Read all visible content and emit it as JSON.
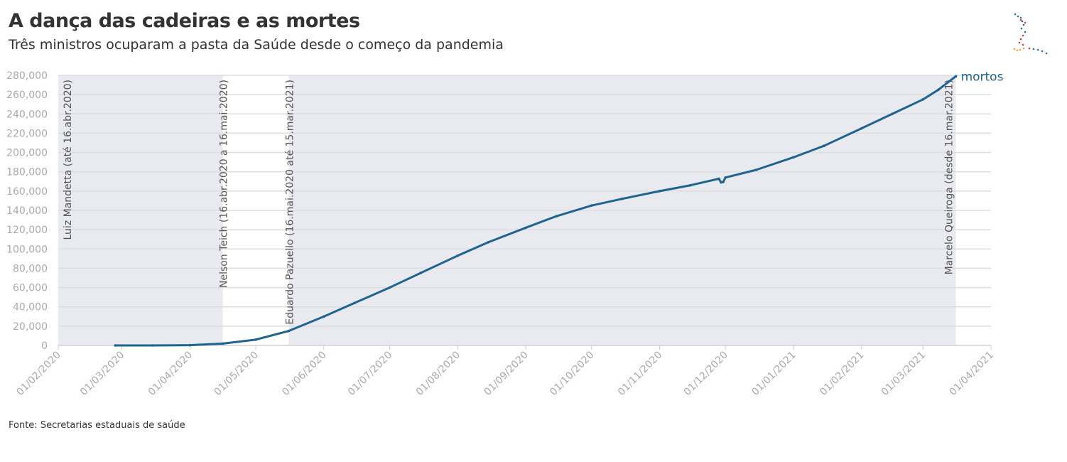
{
  "header": {
    "title": "A dança das cadeiras e as mortes",
    "subtitle": "Três ministros ocuparam a pasta da Saúde desde o começo da pandemia"
  },
  "footer": {
    "source": "Fonte: Secretarias estaduais de saúde"
  },
  "colors": {
    "line": "#1f6391",
    "band": "#e9eaef",
    "grid": "#dcdde2",
    "axis_text": "#aaaaaa"
  },
  "chart_data": {
    "type": "line",
    "title": "A dança das cadeiras e as mortes",
    "xlabel": "",
    "ylabel": "",
    "xlim": [
      "2020-02-01",
      "2021-04-01"
    ],
    "ylim": [
      0,
      280000
    ],
    "yticks": [
      0,
      20000,
      40000,
      60000,
      80000,
      100000,
      120000,
      140000,
      160000,
      180000,
      200000,
      220000,
      240000,
      260000,
      280000
    ],
    "ytick_labels": [
      "0",
      "20,000",
      "40,000",
      "60,000",
      "80,000",
      "100,000",
      "120,000",
      "140,000",
      "160,000",
      "180,000",
      "200,000",
      "220,000",
      "240,000",
      "260,000",
      "280,000"
    ],
    "xticks": [
      "2020-02-01",
      "2020-03-01",
      "2020-04-01",
      "2020-05-01",
      "2020-06-01",
      "2020-07-01",
      "2020-08-01",
      "2020-09-01",
      "2020-10-01",
      "2020-11-01",
      "2020-12-01",
      "2021-01-01",
      "2021-02-01",
      "2021-03-01",
      "2021-04-01"
    ],
    "xtick_labels": [
      "01/02/2020",
      "01/03/2020",
      "01/04/2020",
      "01/05/2020",
      "01/06/2020",
      "01/07/2020",
      "01/08/2020",
      "01/09/2020",
      "01/10/2020",
      "01/11/2020",
      "01/12/2020",
      "01/01/2021",
      "01/02/2021",
      "01/03/2021",
      "01/04/2021"
    ],
    "grid": true,
    "series": [
      {
        "name": "mortos",
        "points": [
          [
            "2020-02-27",
            0
          ],
          [
            "2020-03-15",
            0
          ],
          [
            "2020-04-01",
            300
          ],
          [
            "2020-04-16",
            1900
          ],
          [
            "2020-05-01",
            6000
          ],
          [
            "2020-05-16",
            15000
          ],
          [
            "2020-06-01",
            29900
          ],
          [
            "2020-06-15",
            44000
          ],
          [
            "2020-07-01",
            60000
          ],
          [
            "2020-07-15",
            75000
          ],
          [
            "2020-08-01",
            93000
          ],
          [
            "2020-08-15",
            107000
          ],
          [
            "2020-09-01",
            122000
          ],
          [
            "2020-09-15",
            134000
          ],
          [
            "2020-10-01",
            145000
          ],
          [
            "2020-10-15",
            152000
          ],
          [
            "2020-11-01",
            160000
          ],
          [
            "2020-11-15",
            166000
          ],
          [
            "2020-11-28",
            172800
          ],
          [
            "2020-11-29",
            169000
          ],
          [
            "2020-11-30",
            169500
          ],
          [
            "2020-12-01",
            174000
          ],
          [
            "2020-12-15",
            182000
          ],
          [
            "2021-01-01",
            195000
          ],
          [
            "2021-01-15",
            207000
          ],
          [
            "2021-02-01",
            225000
          ],
          [
            "2021-02-15",
            240000
          ],
          [
            "2021-03-01",
            255000
          ],
          [
            "2021-03-08",
            265000
          ],
          [
            "2021-03-16",
            279000
          ]
        ]
      }
    ],
    "annotations": [
      {
        "label": "Luiz Mandetta (até 16.abr.2020)",
        "start": "2020-02-01",
        "end": "2020-04-16",
        "shaded": true
      },
      {
        "label": "Nelson Teich (16.abr.2020 a 16.mai.2020)",
        "start": "2020-04-16",
        "end": "2020-05-16",
        "shaded": false
      },
      {
        "label": "Eduardo Pazuello (16.mai.2020 até 15.mar.2021)",
        "start": "2020-05-16",
        "end": "2021-03-16",
        "shaded": true
      },
      {
        "label": "Marcelo Queiroga (desde 16.mar.2021)",
        "start": "2021-03-16",
        "end": "2021-03-16",
        "shaded": false
      }
    ]
  }
}
